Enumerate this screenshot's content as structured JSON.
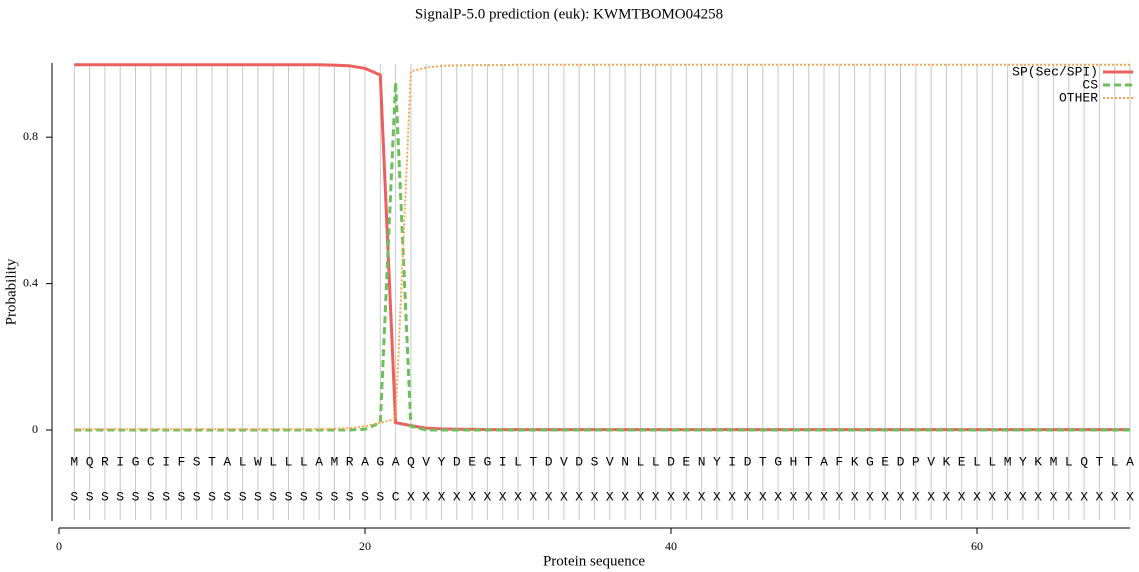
{
  "chart_data": {
    "type": "line",
    "title": "SignalP-5.0 prediction (euk):  KWMTBOMO04258",
    "x_label": "Protein sequence",
    "y_label": "Probability",
    "x": [
      1,
      2,
      3,
      4,
      5,
      6,
      7,
      8,
      9,
      10,
      11,
      12,
      13,
      14,
      15,
      16,
      17,
      18,
      19,
      20,
      21,
      22,
      23,
      24,
      25,
      26,
      27,
      28,
      29,
      30,
      31,
      32,
      33,
      34,
      35,
      36,
      37,
      38,
      39,
      40,
      41,
      42,
      43,
      44,
      45,
      46,
      47,
      48,
      49,
      50,
      51,
      52,
      53,
      54,
      55,
      56,
      57,
      58,
      59,
      60,
      61,
      62,
      63,
      64,
      65,
      66,
      67,
      68,
      69,
      70
    ],
    "sequence": [
      "M",
      "Q",
      "R",
      "I",
      "G",
      "C",
      "I",
      "F",
      "S",
      "T",
      "A",
      "L",
      "W",
      "L",
      "L",
      "L",
      "A",
      "M",
      "R",
      "A",
      "G",
      "A",
      "Q",
      "V",
      "Y",
      "D",
      "E",
      "G",
      "I",
      "L",
      "T",
      "D",
      "V",
      "D",
      "S",
      "V",
      "N",
      "L",
      "L",
      "D",
      "E",
      "N",
      "Y",
      "I",
      "D",
      "T",
      "G",
      "H",
      "T",
      "A",
      "F",
      "K",
      "G",
      "E",
      "D",
      "P",
      "V",
      "K",
      "E",
      "L",
      "L",
      "M",
      "Y",
      "K",
      "M",
      "L",
      "Q",
      "T",
      "L",
      "A"
    ],
    "annotation": [
      "S",
      "S",
      "S",
      "S",
      "S",
      "S",
      "S",
      "S",
      "S",
      "S",
      "S",
      "S",
      "S",
      "S",
      "S",
      "S",
      "S",
      "S",
      "S",
      "S",
      "S",
      "C",
      "X",
      "X",
      "X",
      "X",
      "X",
      "X",
      "X",
      "X",
      "X",
      "X",
      "X",
      "X",
      "X",
      "X",
      "X",
      "X",
      "X",
      "X",
      "X",
      "X",
      "X",
      "X",
      "X",
      "X",
      "X",
      "X",
      "X",
      "X",
      "X",
      "X",
      "X",
      "X",
      "X",
      "X",
      "X",
      "X",
      "X",
      "X",
      "X",
      "X",
      "X",
      "X",
      "X",
      "X",
      "X",
      "X",
      "X",
      "X"
    ],
    "series": [
      {
        "name": "SP(Sec/SPI)",
        "color": "#ec5f5f",
        "style": "solid",
        "values": [
          0.998,
          0.998,
          0.998,
          0.998,
          0.998,
          0.998,
          0.998,
          0.998,
          0.998,
          0.998,
          0.998,
          0.998,
          0.998,
          0.998,
          0.998,
          0.998,
          0.998,
          0.997,
          0.995,
          0.988,
          0.97,
          0.02,
          0.012,
          0.005,
          0.003,
          0.002,
          0.002,
          0.001,
          0.001,
          0.001,
          0.001,
          0.001,
          0.001,
          0.001,
          0.001,
          0.001,
          0.001,
          0.001,
          0.001,
          0.001,
          0.001,
          0.001,
          0.001,
          0.001,
          0.001,
          0.001,
          0.001,
          0.001,
          0.001,
          0.001,
          0.001,
          0.001,
          0.001,
          0.001,
          0.001,
          0.001,
          0.001,
          0.001,
          0.001,
          0.001,
          0.001,
          0.001,
          0.001,
          0.001,
          0.001,
          0.001,
          0.001,
          0.001,
          0.001,
          0.001
        ]
      },
      {
        "name": "CS",
        "color": "#6dbf5e",
        "style": "dashed",
        "values": [
          0,
          0,
          0,
          0,
          0,
          0,
          0,
          0,
          0,
          0,
          0,
          0,
          0,
          0,
          0,
          0,
          0,
          0,
          0,
          0.002,
          0.02,
          0.95,
          0.01,
          0,
          0,
          0,
          0,
          0,
          0,
          0,
          0,
          0,
          0,
          0,
          0,
          0,
          0,
          0,
          0,
          0,
          0,
          0,
          0,
          0,
          0,
          0,
          0,
          0,
          0,
          0,
          0,
          0,
          0,
          0,
          0,
          0,
          0,
          0,
          0,
          0,
          0,
          0,
          0,
          0,
          0,
          0,
          0,
          0,
          0,
          0
        ]
      },
      {
        "name": "OTHER",
        "color": "#f5a54a",
        "style": "dotted",
        "values": [
          0.002,
          0.002,
          0.002,
          0.002,
          0.002,
          0.002,
          0.002,
          0.002,
          0.002,
          0.002,
          0.002,
          0.002,
          0.002,
          0.002,
          0.002,
          0.002,
          0.002,
          0.003,
          0.005,
          0.01,
          0.02,
          0.03,
          0.98,
          0.99,
          0.995,
          0.996,
          0.997,
          0.997,
          0.997,
          0.998,
          0.998,
          0.998,
          0.998,
          0.998,
          0.998,
          0.998,
          0.998,
          0.998,
          0.998,
          0.998,
          0.998,
          0.998,
          0.998,
          0.998,
          0.998,
          0.998,
          0.998,
          0.998,
          0.998,
          0.998,
          0.998,
          0.998,
          0.998,
          0.998,
          0.998,
          0.998,
          0.998,
          0.998,
          0.998,
          0.998,
          0.998,
          0.998,
          0.998,
          0.998,
          0.998,
          0.998,
          0.998,
          0.998,
          0.998,
          0.998
        ]
      }
    ],
    "xlim": [
      0,
      70
    ],
    "xticks": [
      0,
      20,
      40,
      60
    ],
    "ylim": [
      -0.25,
      1.0
    ],
    "yticks": [
      0,
      0.4,
      0.8
    ],
    "legend": "top-right"
  }
}
